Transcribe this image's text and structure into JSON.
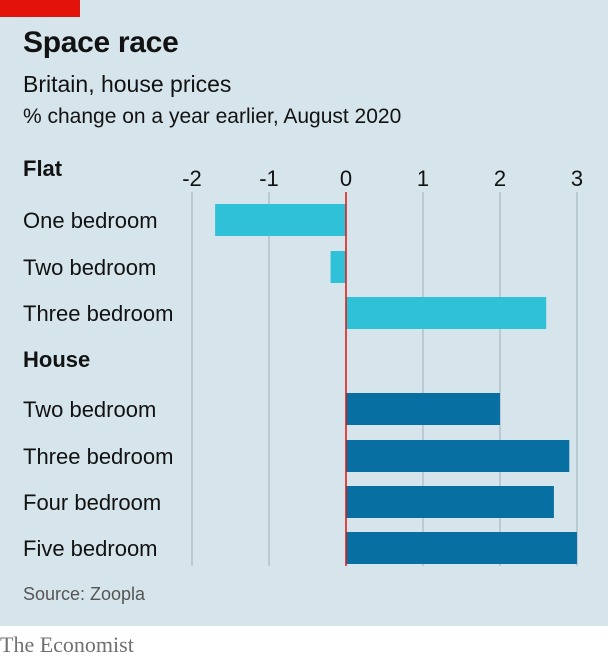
{
  "header": {
    "title": "Space race",
    "subtitle": "Britain, house prices",
    "unit": "% change on a year earlier, August 2020"
  },
  "footer": {
    "source": "Source: Zoopla",
    "brand": "The Economist"
  },
  "colors": {
    "flat": "#2fc1d7",
    "house": "#076fa1",
    "zero_line": "#e3120b",
    "grid": "#a9b9c3",
    "background": "#d6e4ec",
    "accent_tag": "#e3120b"
  },
  "chart_data": {
    "type": "bar",
    "orientation": "horizontal",
    "xlim": [
      -2,
      3
    ],
    "x_ticks": [
      "-2",
      "-1",
      "0",
      "1",
      "2",
      "3"
    ],
    "grid": true,
    "groups": [
      {
        "name": "Flat",
        "categories": [
          "One bedroom",
          "Two bedroom",
          "Three bedroom"
        ],
        "values": [
          -1.7,
          -0.2,
          2.6
        ]
      },
      {
        "name": "House",
        "categories": [
          "Two bedroom",
          "Three bedroom",
          "Four bedroom",
          "Five bedroom"
        ],
        "values": [
          2.0,
          2.9,
          2.7,
          3.0
        ]
      }
    ]
  }
}
